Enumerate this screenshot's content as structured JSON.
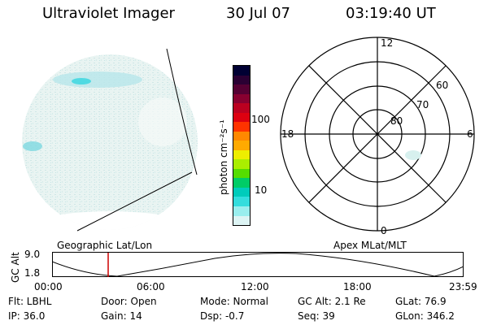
{
  "header": {
    "instrument": "Ultraviolet Imager",
    "date": "30 Jul 07",
    "time": "03:19:40 UT"
  },
  "colorbar": {
    "unit_label": "photon cm⁻²s⁻¹",
    "ticks": [
      "100",
      "10"
    ],
    "colors": [
      "#000033",
      "#2a0033",
      "#550033",
      "#880030",
      "#bb0020",
      "#dd0010",
      "#ff3300",
      "#ff8800",
      "#ffaa00",
      "#eeee00",
      "#aaee00",
      "#55dd00",
      "#00cc66",
      "#00ccbb",
      "#33dddd",
      "#99eeee",
      "#ddf4f4"
    ]
  },
  "polar": {
    "mlt_labels": {
      "top": "12",
      "left": "18",
      "right": "6",
      "bottom": "0"
    },
    "lat_labels": [
      "60",
      "70",
      "80"
    ]
  },
  "map_labels": {
    "left": "Geographic Lat/Lon",
    "right": "Apex MLat/MLT"
  },
  "altitude_plot": {
    "ylabel": "GC Alt",
    "y_ticks": [
      "9.0",
      "1.8"
    ],
    "x_ticks": [
      "00:00",
      "06:00",
      "12:00",
      "18:00",
      "23:59"
    ],
    "marker_color": "#cc0000"
  },
  "status": {
    "flt": "Flt: LBHL",
    "door": "Door: Open",
    "mode": "Mode: Normal",
    "gcalt": "GC Alt: 2.1 Re",
    "glat": "GLat:  76.9",
    "ip": "IP: 36.0",
    "gain": "Gain: 14",
    "dsp": "Dsp:   -0.7",
    "seq": "Seq: 39",
    "glon": "GLon: 346.2"
  }
}
